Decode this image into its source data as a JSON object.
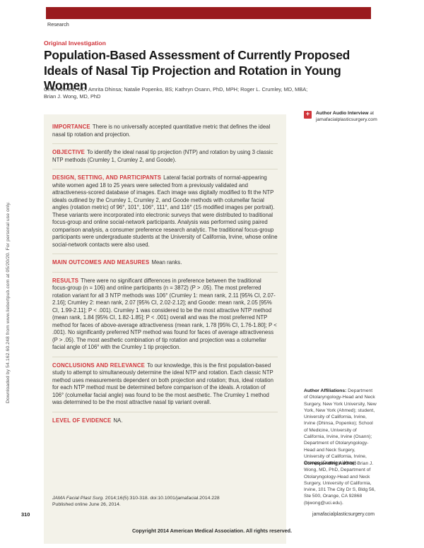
{
  "colors": {
    "bar-red": "#9a1b1e",
    "accent-red": "#d0353b",
    "box-beige": "#f3f2e9"
  },
  "watermark": "Downloaded by 54.162.60.248 from www.liebertpub.com at 05/20/20. For personal use only.",
  "page": {
    "header_label": "Research",
    "kicker": "Original Investigation",
    "title": "Population-Based Assessment of Currently Proposed Ideals of Nasal Tip Projection and Rotation in Young Women",
    "authors": [
      "Omar Ahmed, MD; Amrita Dhinsa; Natalie Popenko, BS; Kathryn Osann, PhD, MPH; Roger L. Crumley, MD, MBA;",
      "Brian J. Wong, MD, PhD"
    ]
  },
  "abstract": {
    "sections": [
      {
        "label": "IMPORTANCE",
        "text": "There is no universally accepted quantitative metric that defines the ideal nasal tip rotation and projection."
      },
      {
        "label": "OBJECTIVE",
        "text": "To identify the ideal nasal tip projection (NTP) and rotation by using 3 classic NTP methods (Crumley 1, Crumley 2, and Goode)."
      },
      {
        "label": "DESIGN, SETTING, AND PARTICIPANTS",
        "text": "Lateral facial portraits of normal-appearing white women aged 18 to 25 years were selected from a previously validated and attractiveness-scored database of images. Each image was digitally modified to fit the NTP ideals outlined by the Crumley 1, Crumley 2, and Goode methods with columellar facial angles (rotation metric) of 96°, 101°, 106°, 111°, and 116° (15 modified images per portrait). These variants were incorporated into electronic surveys that were distributed to traditional focus-group and online social-network participants. Analysis was performed using paired comparison analysis, a consumer preference research analytic. The traditional focus-group participants were undergraduate students at the University of California, Irvine, whose online social-network contacts were also used."
      },
      {
        "label": "MAIN OUTCOMES AND MEASURES",
        "text": "Mean ranks."
      },
      {
        "label": "RESULTS",
        "text": "There were no significant differences in preference between the traditional focus-group (n = 106) and online participants (n = 3872) (P > .05). The most preferred rotation variant for all 3 NTP methods was 106° (Crumley 1: mean rank, 2.11 [95% CI, 2.07-2.16]; Crumley 2: mean rank, 2.07 [95% CI, 2.02-2.12]; and Goode: mean rank, 2.05 [95% CI, 1.99-2.11]; P < .001). Crumley 1 was considered to be the most attractive NTP method (mean rank, 1.84 [95% CI, 1.82-1.85]; P < .001) overall and was the most preferred NTP method for faces of above-average attractiveness (mean rank, 1.78 [95% CI, 1.76-1.80]; P < .001). No significantly preferred NTP method was found for faces of average attractiveness (P > .05). The most aesthetic combination of tip rotation and projection was a columellar facial angle of 106° with the Crumley 1 tip projection."
      },
      {
        "label": "CONCLUSIONS AND RELEVANCE",
        "text": "To our knowledge, this is the first population-based study to attempt to simultaneously determine the ideal NTP and rotation. Each classic NTP method uses measurements dependent on both projection and rotation; thus, ideal rotation for each NTP method must be determined before comparison of the ideals. A rotation of 106° (columellar facial angle) was found to be the most aesthetic. The Crumley 1 method was determined to be the most attractive nasal tip variant overall."
      },
      {
        "label": "LEVEL OF EVIDENCE",
        "text": "NA."
      }
    ]
  },
  "sidebar": {
    "audio": {
      "icon": "plus-icon",
      "title": "Author Audio Interview",
      "at": "at",
      "link": "jamafacialplasticsurgery.com"
    },
    "affiliations_label": "Author Affiliations:",
    "affiliations_text": "Department of Otolaryngology-Head and Neck Surgery, New York University, New York, New York (Ahmed); student, University of California, Irvine, Irvine (Dhinsa, Popenko); School of Medicine, University of California, Irvine, Irvine (Osann); Department of Otolaryngology-Head and Neck Surgery, University of California, Irvine, Orange (Crumley, Wong).",
    "corresponding_label": "Corresponding Author:",
    "corresponding_text": "Brian J. Wong, MD, PhD, Department of Otolaryngology-Head and Neck Surgery, University of California, Irvine, 101 The City Dr S, Bldg 56, Ste 500, Orange, CA 92868 (bjwong@uci.edu)."
  },
  "citation": {
    "journal": "JAMA Facial Plast Surg.",
    "rest": "2014;16(5):310-318. doi:10.1001/jamafacial.2014.228",
    "published": "Published online June 26, 2014."
  },
  "footer": {
    "page_number": "310",
    "site": "jamafacialplasticsurgery.com",
    "copyright": "Copyright 2014 American Medical Association. All rights reserved."
  }
}
